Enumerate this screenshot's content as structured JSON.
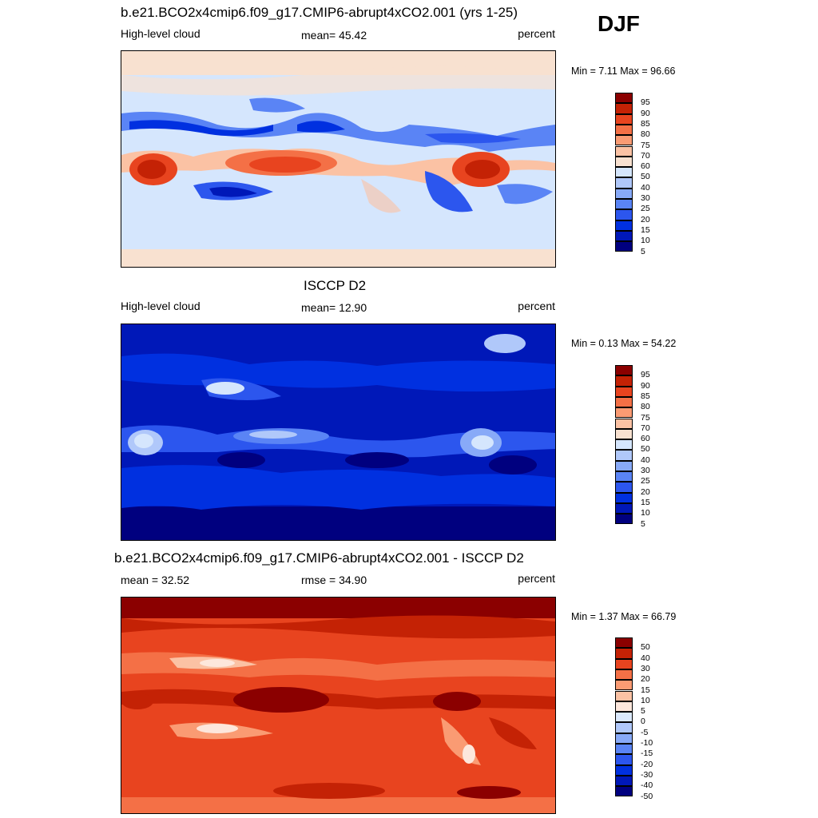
{
  "season": "DJF",
  "colors": {
    "full": [
      "#00007f",
      "#0018b8",
      "#0030e0",
      "#2c56ee",
      "#5a84f5",
      "#88aaf8",
      "#b0c8fa",
      "#d5e6fd",
      "#f8e1d0",
      "#fbc2a4",
      "#fa9b73",
      "#f47046",
      "#e8441f",
      "#c42205",
      "#8b0000"
    ],
    "diff": [
      "#00007f",
      "#0018b8",
      "#0030e0",
      "#2c56ee",
      "#5a84f5",
      "#88aaf8",
      "#b0c8fa",
      "#dbe9fd",
      "#fde7dc",
      "#fbc2a4",
      "#fa9b73",
      "#f47046",
      "#e8441f",
      "#c42205",
      "#8b0000"
    ]
  },
  "panels": [
    {
      "title": "b.e21.BCO2x4cmip6.f09_g17.CMIP6-abrupt4xCO2.001 (yrs 1-25)",
      "left_label": "High-level cloud",
      "center_label": "mean=  45.42",
      "right_label": "percent",
      "minmax": "Min =   7.11 Max =  96.66",
      "colorbar_labels": [
        "95",
        "90",
        "85",
        "80",
        "75",
        "70",
        "60",
        "50",
        "40",
        "30",
        "25",
        "20",
        "15",
        "10",
        "5"
      ]
    },
    {
      "title": "ISCCP D2",
      "left_label": "High-level cloud",
      "center_label": "mean=  12.90",
      "right_label": "percent",
      "minmax": "Min =   0.13 Max =  54.22",
      "colorbar_labels": [
        "95",
        "90",
        "85",
        "80",
        "75",
        "70",
        "60",
        "50",
        "40",
        "30",
        "25",
        "20",
        "15",
        "10",
        "5"
      ]
    },
    {
      "title": "b.e21.BCO2x4cmip6.f09_g17.CMIP6-abrupt4xCO2.001 - ISCCP D2",
      "left_label": "mean =  32.52",
      "center_label": "rmse =  34.90",
      "right_label": "percent",
      "minmax": "Min =   1.37 Max =  66.79",
      "colorbar_labels": [
        "50",
        "40",
        "30",
        "20",
        "15",
        "10",
        "5",
        "0",
        "-5",
        "-10",
        "-15",
        "-20",
        "-30",
        "-40",
        "-50"
      ]
    }
  ]
}
